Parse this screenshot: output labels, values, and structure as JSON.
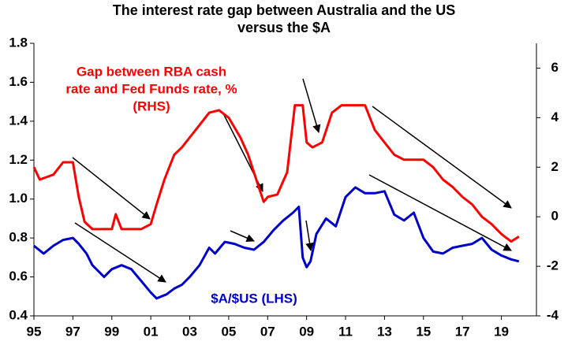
{
  "chart_data": {
    "type": "line",
    "title": [
      "The interest rate gap between Australia and the US",
      "versus the $A"
    ],
    "annotations": [
      {
        "lines": [
          "Gap between RBA cash",
          "rate and Fed Funds rate, %",
          "(RHS)"
        ],
        "color": "#ff0000"
      },
      {
        "lines": [
          "$A/$US (LHS)"
        ],
        "color": "#0000cc"
      }
    ],
    "xlim": [
      1995,
      2020.8
    ],
    "xticks": [
      {
        "value": 1995,
        "label": "95"
      },
      {
        "value": 1997,
        "label": "97"
      },
      {
        "value": 1999,
        "label": "99"
      },
      {
        "value": 2001,
        "label": "01"
      },
      {
        "value": 2003,
        "label": "03"
      },
      {
        "value": 2005,
        "label": "05"
      },
      {
        "value": 2007,
        "label": "07"
      },
      {
        "value": 2009,
        "label": "09"
      },
      {
        "value": 2011,
        "label": "11"
      },
      {
        "value": 2013,
        "label": "13"
      },
      {
        "value": 2015,
        "label": "15"
      },
      {
        "value": 2017,
        "label": "17"
      },
      {
        "value": 2019,
        "label": "19"
      }
    ],
    "ylim": [
      0.4,
      1.8
    ],
    "yticks": [
      0.4,
      0.6,
      0.8,
      {
        "value": 1,
        "label": "1.0"
      },
      1.2,
      1.4,
      1.6,
      1.8
    ],
    "y2lim": [
      -4,
      7
    ],
    "y2ticks": [
      -4,
      -2,
      0,
      2,
      4,
      6
    ],
    "series": [
      {
        "name": "Gap between RBA cash rate and Fed Funds rate, % (RHS)",
        "color": "#ff0000",
        "axis": "y2",
        "x": [
          1995,
          1995.3,
          1996,
          1996.5,
          1997,
          1997.3,
          1997.6,
          1998,
          1999,
          1999.2,
          1999.5,
          2000,
          2000.5,
          2001,
          2001.3,
          2001.7,
          2002.2,
          2002.6,
          2003,
          2003.6,
          2004,
          2004.5,
          2005,
          2005.6,
          2006,
          2006.5,
          2006.8,
          2007,
          2007.5,
          2008,
          2008.4,
          2008.8,
          2009,
          2009.3,
          2009.8,
          2010.3,
          2010.8,
          2011.5,
          2012,
          2012.5,
          2013,
          2013.5,
          2014,
          2015,
          2015.5,
          2016,
          2016.5,
          2017,
          2017.5,
          2018,
          2018.5,
          2019,
          2019.5,
          2019.9
        ],
        "values": [
          2.0,
          1.5,
          1.7,
          2.2,
          2.2,
          0.8,
          -0.2,
          -0.5,
          -0.5,
          0.1,
          -0.5,
          -0.5,
          -0.5,
          -0.3,
          0.5,
          1.5,
          2.5,
          2.8,
          3.2,
          3.8,
          4.2,
          4.3,
          4.0,
          3.2,
          2.5,
          1.3,
          0.6,
          0.8,
          0.9,
          1.8,
          4.5,
          4.5,
          3.0,
          2.8,
          3.0,
          4.2,
          4.5,
          4.5,
          4.5,
          3.5,
          3.0,
          2.5,
          2.3,
          2.3,
          2.0,
          1.5,
          1.2,
          0.8,
          0.5,
          0.0,
          -0.3,
          -0.7,
          -1.0,
          -0.8
        ]
      },
      {
        "name": "$A/$US (LHS)",
        "color": "#0000cc",
        "x": [
          1995,
          1995.5,
          1996,
          1996.5,
          1997,
          1997.3,
          1997.7,
          1998,
          1998.6,
          1999,
          1999.5,
          2000,
          2000.5,
          2001,
          2001.3,
          2001.8,
          2002.2,
          2002.6,
          2003,
          2003.5,
          2004,
          2004.3,
          2004.8,
          2005.3,
          2005.8,
          2006.3,
          2006.8,
          2007.3,
          2007.8,
          2008.3,
          2008.6,
          2008.8,
          2009,
          2009.2,
          2009.5,
          2010,
          2010.5,
          2011,
          2011.5,
          2012,
          2012.5,
          2013,
          2013.5,
          2014,
          2014.5,
          2015,
          2015.5,
          2016,
          2016.5,
          2017,
          2017.5,
          2018,
          2018.5,
          2019,
          2019.5,
          2019.9
        ],
        "values": [
          0.76,
          0.72,
          0.76,
          0.79,
          0.8,
          0.77,
          0.72,
          0.66,
          0.6,
          0.64,
          0.66,
          0.64,
          0.58,
          0.52,
          0.49,
          0.51,
          0.54,
          0.56,
          0.6,
          0.66,
          0.75,
          0.72,
          0.78,
          0.77,
          0.75,
          0.74,
          0.78,
          0.84,
          0.89,
          0.93,
          0.96,
          0.7,
          0.65,
          0.68,
          0.82,
          0.9,
          0.86,
          1.01,
          1.06,
          1.03,
          1.03,
          1.04,
          0.92,
          0.89,
          0.93,
          0.8,
          0.73,
          0.72,
          0.75,
          0.76,
          0.77,
          0.8,
          0.74,
          0.71,
          0.69,
          0.68
        ]
      }
    ]
  }
}
